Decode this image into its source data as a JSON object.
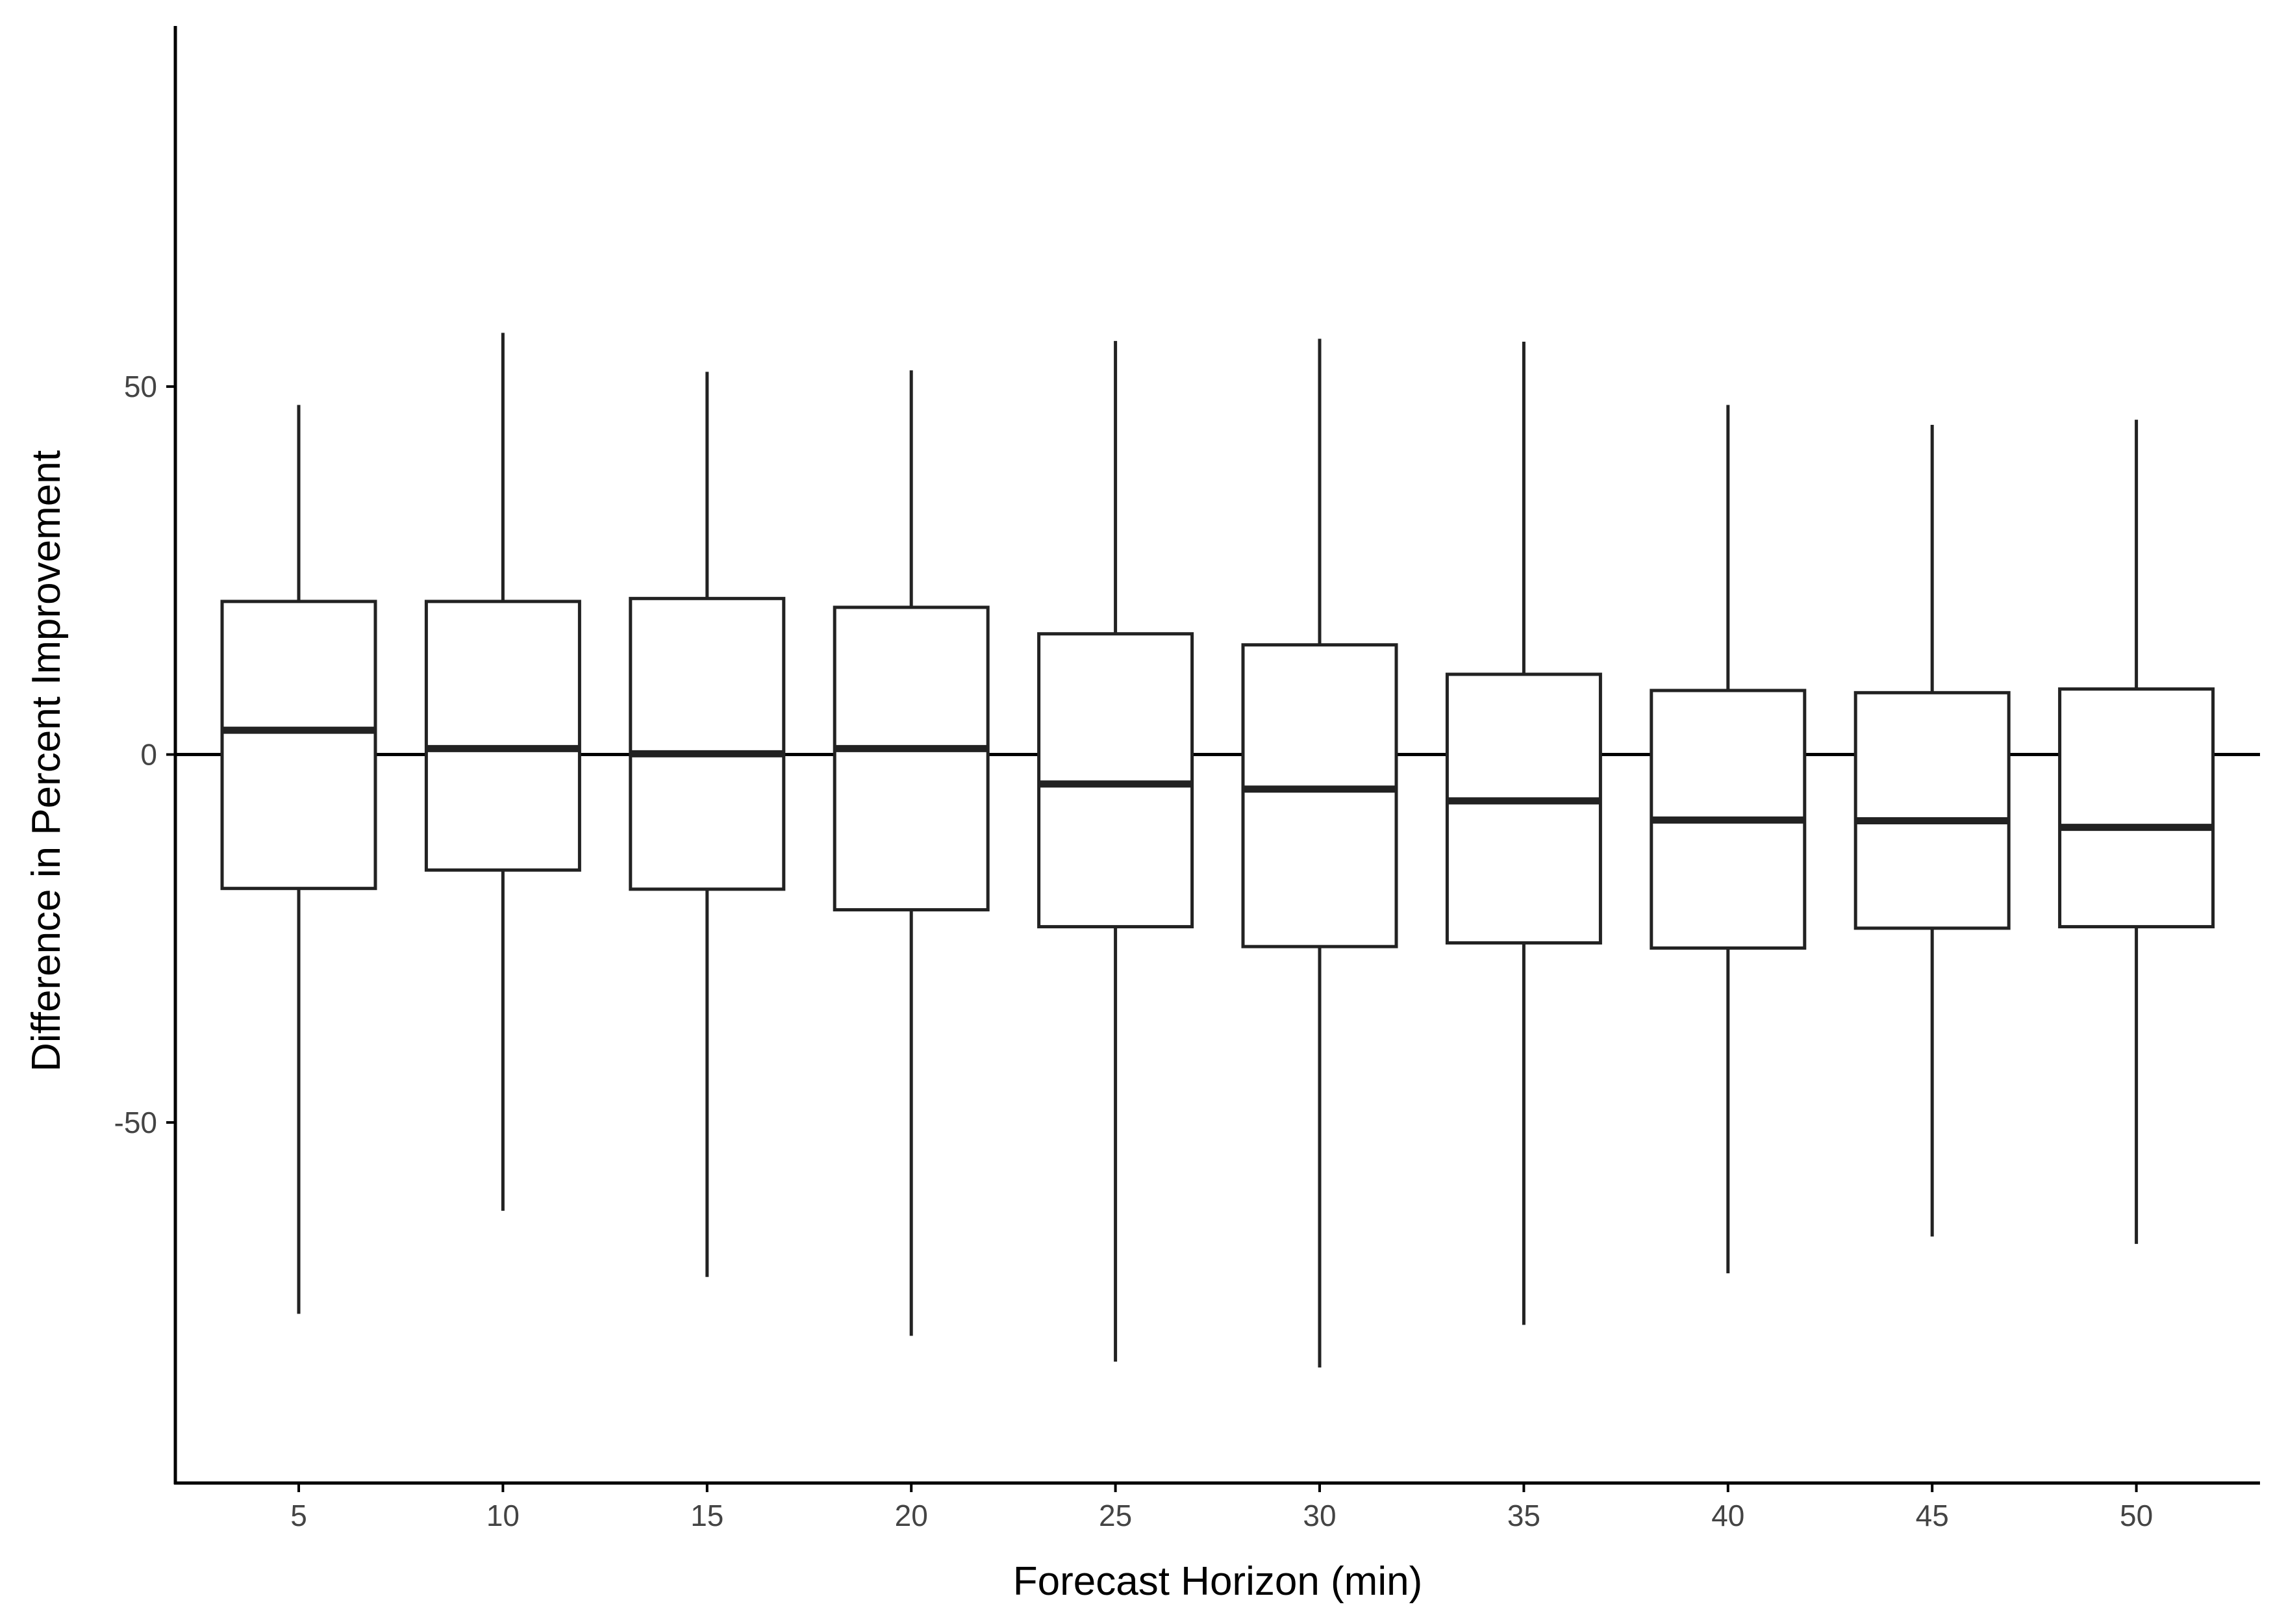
{
  "chart_data": {
    "type": "boxplot",
    "xlabel": "Forecast Horizon (min)",
    "ylabel": "Difference in Percent Improvement",
    "ylim": [
      -99,
      99
    ],
    "yticks": [
      50,
      0,
      -50
    ],
    "ytick_labels": [
      "50",
      "0",
      "-50"
    ],
    "reference_line_y": 0,
    "grid": false,
    "categories": [
      "5",
      "10",
      "15",
      "20",
      "25",
      "30",
      "35",
      "40",
      "45",
      "50"
    ],
    "boxes": [
      {
        "x": "5",
        "lower_whisker": -76,
        "q1": -18.2,
        "median": 3.3,
        "q3": 20.8,
        "upper_whisker": 47.5
      },
      {
        "x": "10",
        "lower_whisker": -62,
        "q1": -15.7,
        "median": 0.8,
        "q3": 20.8,
        "upper_whisker": 57.3
      },
      {
        "x": "15",
        "lower_whisker": -71,
        "q1": -18.3,
        "median": 0.1,
        "q3": 21.2,
        "upper_whisker": 52.0
      },
      {
        "x": "20",
        "lower_whisker": -79,
        "q1": -21.1,
        "median": 0.8,
        "q3": 20.0,
        "upper_whisker": 52.2
      },
      {
        "x": "25",
        "lower_whisker": -82.5,
        "q1": -23.4,
        "median": -4.0,
        "q3": 16.4,
        "upper_whisker": 56.2
      },
      {
        "x": "30",
        "lower_whisker": -83.3,
        "q1": -26.1,
        "median": -4.7,
        "q3": 14.9,
        "upper_whisker": 56.5
      },
      {
        "x": "35",
        "lower_whisker": -77.5,
        "q1": -25.6,
        "median": -6.3,
        "q3": 10.9,
        "upper_whisker": 56.1
      },
      {
        "x": "40",
        "lower_whisker": -70.5,
        "q1": -26.3,
        "median": -8.9,
        "q3": 8.7,
        "upper_whisker": 47.5
      },
      {
        "x": "45",
        "lower_whisker": -65.5,
        "q1": -23.6,
        "median": -9.0,
        "q3": 8.4,
        "upper_whisker": 44.8
      },
      {
        "x": "50",
        "lower_whisker": -66.5,
        "q1": -23.4,
        "median": -9.9,
        "q3": 8.9,
        "upper_whisker": 45.5
      }
    ]
  }
}
